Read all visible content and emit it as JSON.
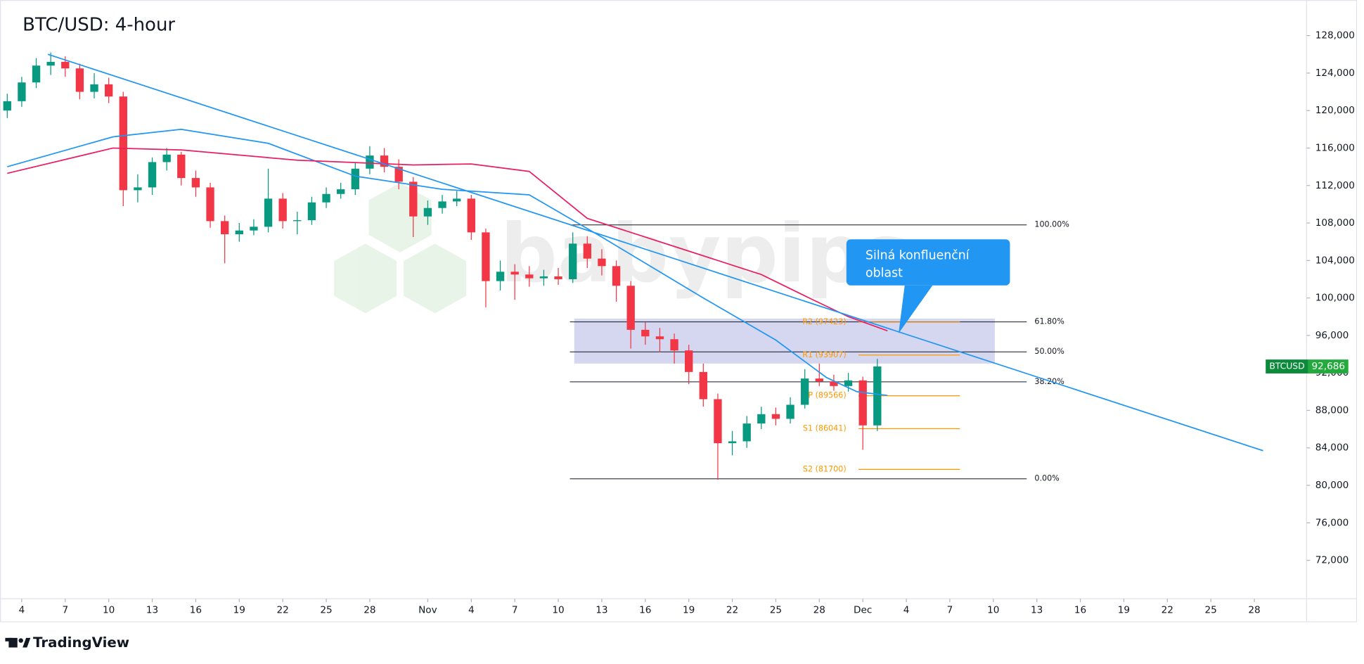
{
  "chart_data": {
    "type": "candlestick",
    "title": "BTC/USD: 4-hour",
    "watermark": "babypips",
    "brand": "TradingView",
    "up_color": "#089981",
    "down_color": "#f23645",
    "ylim": [
      67900,
      131800
    ],
    "xlim": [
      0,
      89.6
    ],
    "yticks": [
      {
        "value": 72000,
        "label": "72,000"
      },
      {
        "value": 76000,
        "label": "76,000"
      },
      {
        "value": 80000,
        "label": "80,000"
      },
      {
        "value": 84000,
        "label": "84,000"
      },
      {
        "value": 88000,
        "label": "88,000"
      },
      {
        "value": 92000,
        "label": "92,000"
      },
      {
        "value": 96000,
        "label": "96,000"
      },
      {
        "value": 100000,
        "label": "100,000"
      },
      {
        "value": 104000,
        "label": "104,000"
      },
      {
        "value": 108000,
        "label": "108,000"
      },
      {
        "value": 112000,
        "label": "112,000"
      },
      {
        "value": 116000,
        "label": "116,000"
      },
      {
        "value": 120000,
        "label": "120,000"
      },
      {
        "value": 124000,
        "label": "124,000"
      },
      {
        "value": 128000,
        "label": "128,000"
      }
    ],
    "xticks": [
      {
        "value": 1,
        "label": "4"
      },
      {
        "value": 4,
        "label": "7"
      },
      {
        "value": 7,
        "label": "10"
      },
      {
        "value": 10,
        "label": "13"
      },
      {
        "value": 13,
        "label": "16"
      },
      {
        "value": 16,
        "label": "19"
      },
      {
        "value": 19,
        "label": "22"
      },
      {
        "value": 22,
        "label": "25"
      },
      {
        "value": 25,
        "label": "28"
      },
      {
        "value": 29,
        "label": "Nov"
      },
      {
        "value": 32,
        "label": "4"
      },
      {
        "value": 35,
        "label": "7"
      },
      {
        "value": 38,
        "label": "10"
      },
      {
        "value": 41,
        "label": "13"
      },
      {
        "value": 44,
        "label": "16"
      },
      {
        "value": 47,
        "label": "19"
      },
      {
        "value": 50,
        "label": "22"
      },
      {
        "value": 53,
        "label": "25"
      },
      {
        "value": 56,
        "label": "28"
      },
      {
        "value": 59,
        "label": "Dec"
      },
      {
        "value": 62,
        "label": "4"
      },
      {
        "value": 65,
        "label": "7"
      },
      {
        "value": 68,
        "label": "10"
      },
      {
        "value": 71,
        "label": "13"
      },
      {
        "value": 74,
        "label": "16"
      },
      {
        "value": 77,
        "label": "19"
      },
      {
        "value": 80,
        "label": "22"
      },
      {
        "value": 83,
        "label": "25"
      },
      {
        "value": 86,
        "label": "28"
      }
    ],
    "x": [
      0,
      1,
      2,
      3,
      4,
      5,
      6,
      7,
      8,
      9,
      10,
      11,
      12,
      13,
      14,
      15,
      16,
      17,
      18,
      19,
      20,
      21,
      22,
      23,
      24,
      25,
      26,
      27,
      28,
      29,
      30,
      31,
      32,
      33,
      34,
      35,
      36,
      37,
      38,
      39,
      40,
      41,
      42,
      43,
      44,
      45,
      46,
      47,
      48,
      49,
      50,
      51,
      52,
      53,
      54,
      55,
      56,
      57,
      58,
      59,
      60
    ],
    "candles": [
      {
        "o": 120000,
        "h": 121800,
        "l": 119200,
        "c": 121000
      },
      {
        "o": 121000,
        "h": 123600,
        "l": 120400,
        "c": 123000
      },
      {
        "o": 123000,
        "h": 125600,
        "l": 122400,
        "c": 124800
      },
      {
        "o": 124800,
        "h": 126200,
        "l": 123800,
        "c": 125200
      },
      {
        "o": 125200,
        "h": 125800,
        "l": 123600,
        "c": 124500
      },
      {
        "o": 124500,
        "h": 125000,
        "l": 121200,
        "c": 122000
      },
      {
        "o": 122000,
        "h": 124000,
        "l": 121300,
        "c": 122800
      },
      {
        "o": 122800,
        "h": 123500,
        "l": 120800,
        "c": 121500
      },
      {
        "o": 121500,
        "h": 122000,
        "l": 109800,
        "c": 111500
      },
      {
        "o": 111500,
        "h": 113200,
        "l": 110200,
        "c": 111800
      },
      {
        "o": 111800,
        "h": 115000,
        "l": 111000,
        "c": 114500
      },
      {
        "o": 114500,
        "h": 116000,
        "l": 113600,
        "c": 115300
      },
      {
        "o": 115300,
        "h": 115600,
        "l": 112000,
        "c": 112800
      },
      {
        "o": 112800,
        "h": 113600,
        "l": 110800,
        "c": 111800
      },
      {
        "o": 111800,
        "h": 112300,
        "l": 107500,
        "c": 108200
      },
      {
        "o": 108200,
        "h": 108800,
        "l": 103700,
        "c": 106800
      },
      {
        "o": 106800,
        "h": 108000,
        "l": 106000,
        "c": 107200
      },
      {
        "o": 107200,
        "h": 108400,
        "l": 106700,
        "c": 107600
      },
      {
        "o": 107600,
        "h": 113800,
        "l": 107000,
        "c": 110600
      },
      {
        "o": 110600,
        "h": 111200,
        "l": 107400,
        "c": 108200
      },
      {
        "o": 108200,
        "h": 109200,
        "l": 106800,
        "c": 108300
      },
      {
        "o": 108300,
        "h": 110800,
        "l": 107800,
        "c": 110200
      },
      {
        "o": 110200,
        "h": 111800,
        "l": 109600,
        "c": 111100
      },
      {
        "o": 111100,
        "h": 112300,
        "l": 110600,
        "c": 111600
      },
      {
        "o": 111600,
        "h": 114400,
        "l": 111000,
        "c": 113800
      },
      {
        "o": 113800,
        "h": 116200,
        "l": 113200,
        "c": 115200
      },
      {
        "o": 115200,
        "h": 116000,
        "l": 113400,
        "c": 114000
      },
      {
        "o": 114000,
        "h": 114800,
        "l": 111600,
        "c": 112400
      },
      {
        "o": 112400,
        "h": 112900,
        "l": 106500,
        "c": 108700
      },
      {
        "o": 108700,
        "h": 110400,
        "l": 107800,
        "c": 109600
      },
      {
        "o": 109600,
        "h": 111000,
        "l": 109000,
        "c": 110300
      },
      {
        "o": 110300,
        "h": 111400,
        "l": 109800,
        "c": 110600
      },
      {
        "o": 110600,
        "h": 111000,
        "l": 106200,
        "c": 107000
      },
      {
        "o": 107000,
        "h": 107400,
        "l": 99000,
        "c": 101800
      },
      {
        "o": 101800,
        "h": 104000,
        "l": 100800,
        "c": 102800
      },
      {
        "o": 102800,
        "h": 103600,
        "l": 99800,
        "c": 102500
      },
      {
        "o": 102500,
        "h": 103400,
        "l": 101200,
        "c": 102100
      },
      {
        "o": 102100,
        "h": 103000,
        "l": 101300,
        "c": 102300
      },
      {
        "o": 102300,
        "h": 103200,
        "l": 101400,
        "c": 102000
      },
      {
        "o": 102000,
        "h": 107000,
        "l": 101600,
        "c": 105800
      },
      {
        "o": 105800,
        "h": 106600,
        "l": 103200,
        "c": 104200
      },
      {
        "o": 104200,
        "h": 105200,
        "l": 102400,
        "c": 103400
      },
      {
        "o": 103400,
        "h": 104000,
        "l": 99600,
        "c": 101300
      },
      {
        "o": 101300,
        "h": 101800,
        "l": 94600,
        "c": 96600
      },
      {
        "o": 96600,
        "h": 97400,
        "l": 95000,
        "c": 95900
      },
      {
        "o": 95900,
        "h": 96800,
        "l": 94200,
        "c": 95600
      },
      {
        "o": 95600,
        "h": 96200,
        "l": 93000,
        "c": 94400
      },
      {
        "o": 94400,
        "h": 95000,
        "l": 90800,
        "c": 92100
      },
      {
        "o": 92100,
        "h": 93000,
        "l": 88400,
        "c": 89200
      },
      {
        "o": 89200,
        "h": 89800,
        "l": 80600,
        "c": 84500
      },
      {
        "o": 84500,
        "h": 85800,
        "l": 83200,
        "c": 84700
      },
      {
        "o": 84700,
        "h": 87400,
        "l": 84000,
        "c": 86600
      },
      {
        "o": 86600,
        "h": 88400,
        "l": 86000,
        "c": 87600
      },
      {
        "o": 87600,
        "h": 88300,
        "l": 86400,
        "c": 87100
      },
      {
        "o": 87100,
        "h": 89400,
        "l": 86600,
        "c": 88600
      },
      {
        "o": 88600,
        "h": 92400,
        "l": 88200,
        "c": 91400
      },
      {
        "o": 91400,
        "h": 93000,
        "l": 90600,
        "c": 91100
      },
      {
        "o": 91100,
        "h": 91800,
        "l": 90100,
        "c": 90600
      },
      {
        "o": 90600,
        "h": 92000,
        "l": 90000,
        "c": 91200
      },
      {
        "o": 91200,
        "h": 91600,
        "l": 83800,
        "c": 86400
      },
      {
        "o": 86400,
        "h": 93500,
        "l": 85800,
        "c": 92686
      }
    ],
    "series": [
      {
        "color": "#2196f3",
        "x": [
          0,
          7.3,
          12,
          18,
          24,
          30,
          36,
          41,
          48,
          53,
          56.5,
          58.6,
          60.7
        ],
        "values": [
          114000,
          117200,
          118000,
          116500,
          113000,
          111600,
          111000,
          106500,
          100000,
          95500,
          91500,
          90000,
          89600
        ]
      },
      {
        "color": "#e91e63",
        "x": [
          0,
          7.3,
          12,
          20,
          28,
          32,
          36,
          40,
          46,
          52,
          55.3,
          58,
          60.7
        ],
        "values": [
          113300,
          116000,
          115800,
          114700,
          114200,
          114300,
          113500,
          108500,
          105500,
          102500,
          100000,
          98000,
          96500
        ]
      },
      {
        "color": "#2196f3",
        "x": [
          2.8,
          86.6
        ],
        "values": [
          126000,
          83700
        ]
      }
    ],
    "zone": [
      93000,
      97800
    ],
    "zone_color": "#c5cae9",
    "fib_levels": [
      {
        "value": 107800,
        "label": "100.00%"
      },
      {
        "value": 97450,
        "label": "61.80%"
      },
      {
        "value": 94250,
        "label": "50.00%"
      },
      {
        "value": 91050,
        "label": "38.20%"
      },
      {
        "value": 80700,
        "label": "0.00%"
      }
    ],
    "pivots": [
      {
        "value": 97423,
        "label": "R2 (97423)"
      },
      {
        "value": 93907,
        "label": "R1 (93907)"
      },
      {
        "value": 89566,
        "label": "P (89566)"
      },
      {
        "value": 86041,
        "label": "S1 (86041)"
      },
      {
        "value": 81700,
        "label": "S2 (81700)"
      }
    ],
    "pivot_color": "#ff9800",
    "callout": "Silná konfluenční oblast",
    "price_tag": {
      "name": "BTCUSD",
      "value": 92686,
      "label": "92,686"
    }
  }
}
